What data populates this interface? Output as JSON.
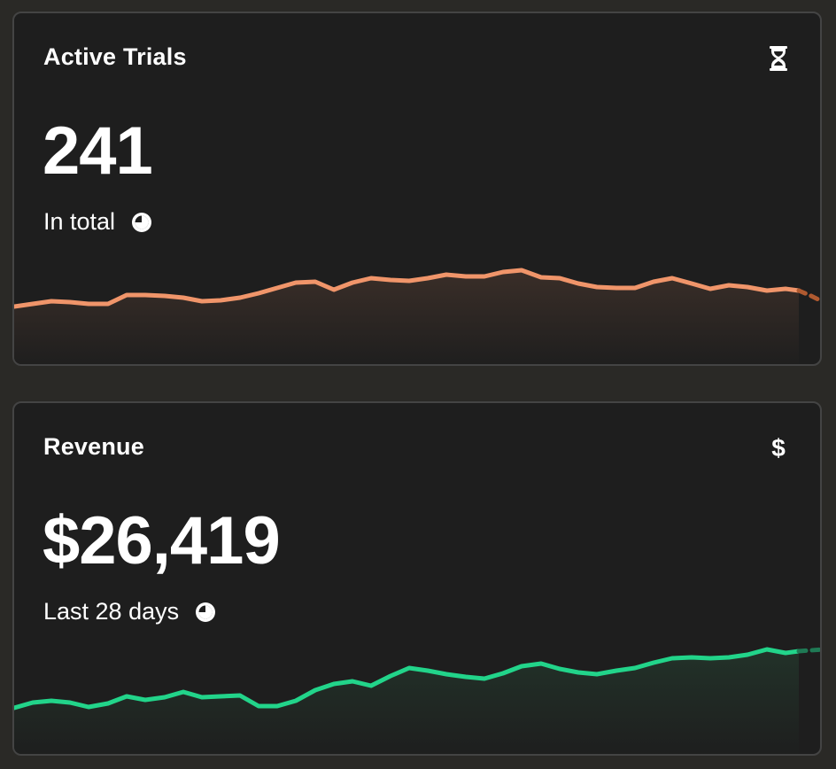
{
  "cards": [
    {
      "id": "trials",
      "title": "Active Trials",
      "icon": "hourglass-icon",
      "value": "241",
      "subtitle": "In total",
      "subtitle_icon": "clock-icon",
      "color": "#f0956a",
      "fill": "#3a2e28"
    },
    {
      "id": "revenue",
      "title": "Revenue",
      "icon": "dollar-icon",
      "icon_glyph": "$",
      "value": "$26,419",
      "subtitle": "Last 28 days",
      "subtitle_icon": "clock-icon",
      "color": "#22d48a",
      "fill": "#223229"
    }
  ]
}
